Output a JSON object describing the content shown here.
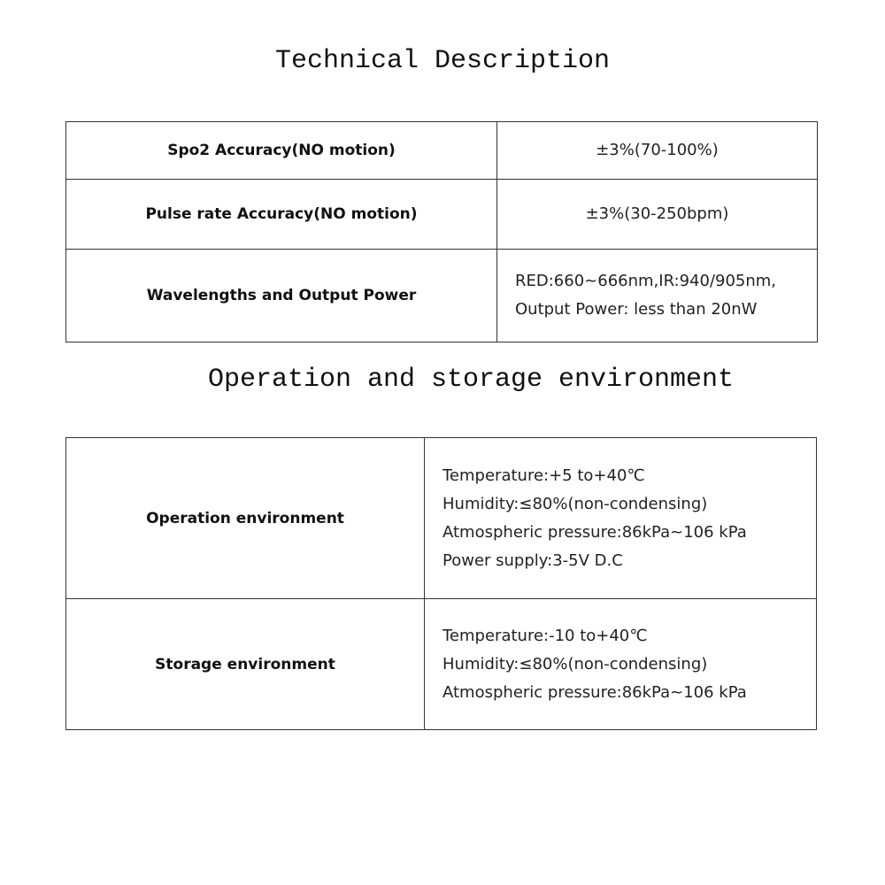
{
  "technical": {
    "title": "Technical Description",
    "rows": [
      {
        "label": "Spo2 Accuracy(NO motion)",
        "value": [
          "±3%(70-100%)"
        ]
      },
      {
        "label": "Pulse rate Accuracy(NO motion)",
        "value": [
          "±3%(30-250bpm)"
        ]
      },
      {
        "label": "Wavelengths and Output Power",
        "value": [
          "RED:660~666nm,IR:940/905nm,",
          "Output Power: less than 20nW"
        ]
      }
    ]
  },
  "environment": {
    "title": "Operation and storage environment",
    "rows": [
      {
        "label": "Operation environment",
        "value": [
          "Temperature:+5 to+40℃",
          "Humidity:≤80%(non-condensing)",
          "Atmospheric pressure:86kPa~106 kPa",
          "Power supply:3-5V D.C"
        ]
      },
      {
        "label": "Storage environment",
        "value": [
          "Temperature:-10 to+40℃",
          "Humidity:≤80%(non-condensing)",
          "Atmospheric pressure:86kPa~106 kPa"
        ]
      }
    ]
  }
}
